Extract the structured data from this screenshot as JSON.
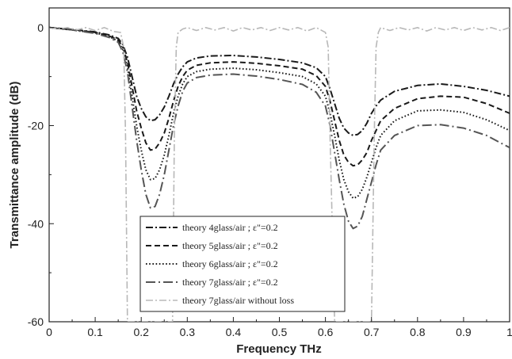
{
  "chart_data": {
    "type": "line",
    "title": "",
    "xlabel": "Frequency THz",
    "ylabel": "Transmittance amplitude (dB)",
    "xlim": [
      0,
      1
    ],
    "ylim": [
      -60,
      4
    ],
    "xticks": [
      "0",
      "0.1",
      "0.2",
      "0.3",
      "0.4",
      "0.5",
      "0.6",
      "0.7",
      "0.8",
      "0.9",
      "1"
    ],
    "yticks": [
      "0",
      "-20",
      "-40",
      "-60"
    ],
    "grid": false,
    "legend_position": "bottom-center",
    "series": [
      {
        "name": "theory 4glass/air ;  ε\"=0.2",
        "color": "#1a1a1a",
        "dash": "dashdot",
        "x": [
          0,
          0.05,
          0.1,
          0.13,
          0.15,
          0.16,
          0.17,
          0.18,
          0.19,
          0.2,
          0.21,
          0.22,
          0.23,
          0.24,
          0.25,
          0.26,
          0.27,
          0.28,
          0.29,
          0.3,
          0.32,
          0.35,
          0.4,
          0.45,
          0.5,
          0.55,
          0.58,
          0.6,
          0.61,
          0.62,
          0.63,
          0.64,
          0.65,
          0.66,
          0.67,
          0.68,
          0.69,
          0.7,
          0.71,
          0.72,
          0.75,
          0.8,
          0.85,
          0.9,
          0.95,
          1
        ],
        "y": [
          0,
          -0.4,
          -0.9,
          -1.5,
          -2.2,
          -3.5,
          -6,
          -10,
          -14,
          -16.5,
          -18.2,
          -19,
          -18.8,
          -17.8,
          -16.2,
          -14,
          -11.5,
          -9.5,
          -8,
          -7,
          -6.2,
          -5.8,
          -5.7,
          -6,
          -6.5,
          -7.2,
          -8.2,
          -10,
          -12.5,
          -15.5,
          -18.5,
          -20.5,
          -21.5,
          -22,
          -21.8,
          -21,
          -19.5,
          -17.5,
          -16,
          -14.8,
          -13,
          -11.8,
          -11.5,
          -12,
          -12.8,
          -14
        ]
      },
      {
        "name": "theory 5glass/air ;  ε\"=0.2",
        "color": "#1a1a1a",
        "dash": "dash",
        "x": [
          0,
          0.05,
          0.1,
          0.13,
          0.15,
          0.16,
          0.17,
          0.18,
          0.19,
          0.2,
          0.21,
          0.22,
          0.23,
          0.24,
          0.25,
          0.26,
          0.27,
          0.28,
          0.29,
          0.3,
          0.32,
          0.35,
          0.4,
          0.45,
          0.5,
          0.55,
          0.58,
          0.6,
          0.61,
          0.62,
          0.63,
          0.64,
          0.65,
          0.66,
          0.67,
          0.68,
          0.69,
          0.7,
          0.71,
          0.72,
          0.75,
          0.8,
          0.85,
          0.9,
          0.95,
          1
        ],
        "y": [
          0,
          -0.4,
          -1,
          -1.7,
          -2.5,
          -4,
          -7,
          -12,
          -17,
          -20.5,
          -23.5,
          -25,
          -24.8,
          -23.5,
          -21.5,
          -18.5,
          -15,
          -12,
          -10,
          -8.7,
          -7.7,
          -7.2,
          -7,
          -7.3,
          -7.8,
          -8.5,
          -9.8,
          -12,
          -15,
          -19,
          -23,
          -26,
          -27.5,
          -28.2,
          -28,
          -27,
          -25.5,
          -23,
          -21,
          -19,
          -16.5,
          -14.5,
          -14,
          -14.2,
          -15.5,
          -17.5
        ]
      },
      {
        "name": "theory 6glass/air ;  ε\"=0.2",
        "color": "#1a1a1a",
        "dash": "dot",
        "x": [
          0,
          0.05,
          0.1,
          0.13,
          0.15,
          0.16,
          0.17,
          0.18,
          0.19,
          0.2,
          0.21,
          0.22,
          0.23,
          0.24,
          0.25,
          0.26,
          0.27,
          0.28,
          0.29,
          0.3,
          0.32,
          0.35,
          0.4,
          0.45,
          0.5,
          0.55,
          0.58,
          0.6,
          0.61,
          0.62,
          0.63,
          0.64,
          0.65,
          0.66,
          0.67,
          0.68,
          0.69,
          0.7,
          0.71,
          0.72,
          0.75,
          0.8,
          0.85,
          0.9,
          0.95,
          1
        ],
        "y": [
          0,
          -0.5,
          -1.1,
          -1.8,
          -2.8,
          -4.5,
          -8,
          -14,
          -20,
          -25,
          -29,
          -31,
          -30.8,
          -29,
          -26,
          -22,
          -17.5,
          -14,
          -11.5,
          -10,
          -9,
          -8.5,
          -8.3,
          -8.6,
          -9.2,
          -10,
          -11.5,
          -14,
          -17.5,
          -22,
          -27,
          -31,
          -33.5,
          -34.8,
          -34.5,
          -33,
          -30.5,
          -27.5,
          -24.5,
          -22,
          -19,
          -17,
          -16.8,
          -17.3,
          -18.8,
          -21
        ]
      },
      {
        "name": "theory 7glass/air ;  ε\"=0.2",
        "color": "#555555",
        "dash": "longdashdot",
        "x": [
          0,
          0.05,
          0.1,
          0.13,
          0.15,
          0.16,
          0.17,
          0.18,
          0.19,
          0.2,
          0.21,
          0.22,
          0.23,
          0.24,
          0.25,
          0.26,
          0.27,
          0.28,
          0.29,
          0.3,
          0.32,
          0.35,
          0.4,
          0.45,
          0.5,
          0.55,
          0.58,
          0.6,
          0.61,
          0.62,
          0.63,
          0.64,
          0.65,
          0.66,
          0.67,
          0.68,
          0.69,
          0.7,
          0.71,
          0.72,
          0.75,
          0.8,
          0.85,
          0.9,
          0.95,
          1
        ],
        "y": [
          0,
          -0.5,
          -1.2,
          -2,
          -3,
          -5,
          -9,
          -16,
          -23,
          -29,
          -34,
          -36.8,
          -36.5,
          -34,
          -30,
          -25,
          -20,
          -16,
          -13,
          -11.3,
          -10.2,
          -9.7,
          -9.5,
          -9.9,
          -10.6,
          -11.6,
          -13.2,
          -16,
          -20,
          -25.5,
          -31,
          -36,
          -39.5,
          -41,
          -40.5,
          -38.5,
          -35,
          -31.5,
          -28,
          -25,
          -22,
          -20,
          -19.8,
          -20.5,
          -22,
          -24.5
        ]
      },
      {
        "name": "theory 7glass/air without loss",
        "color": "#b8b8b8",
        "dash": "dashdot",
        "x": [
          0,
          0.02,
          0.04,
          0.06,
          0.08,
          0.1,
          0.12,
          0.14,
          0.155,
          0.162,
          0.166,
          0.17,
          0.2,
          0.25,
          0.268,
          0.272,
          0.276,
          0.28,
          0.29,
          0.3,
          0.32,
          0.34,
          0.36,
          0.38,
          0.4,
          0.42,
          0.44,
          0.46,
          0.48,
          0.5,
          0.52,
          0.54,
          0.56,
          0.58,
          0.6,
          0.606,
          0.61,
          0.62,
          0.66,
          0.7,
          0.706,
          0.71,
          0.715,
          0.72,
          0.74,
          0.76,
          0.78,
          0.8,
          0.82,
          0.84,
          0.86,
          0.88,
          0.9,
          0.92,
          0.94,
          0.96,
          0.98,
          1
        ],
        "y": [
          0,
          -0.3,
          0,
          -0.5,
          0,
          -0.6,
          0,
          -0.8,
          -1,
          -4,
          -22,
          -60,
          -60,
          -60,
          -60,
          -22,
          -4,
          -1,
          -0.3,
          0,
          -0.6,
          0,
          -0.5,
          0,
          -0.7,
          0,
          -0.5,
          0,
          -0.6,
          0,
          -0.5,
          0,
          -0.7,
          0,
          -1,
          -4,
          -22,
          -60,
          -60,
          -60,
          -22,
          -4,
          -1,
          0,
          -0.6,
          0,
          -0.5,
          0,
          -0.7,
          0,
          -0.5,
          0,
          -0.6,
          0,
          -0.5,
          0,
          -0.6,
          0
        ]
      }
    ]
  }
}
